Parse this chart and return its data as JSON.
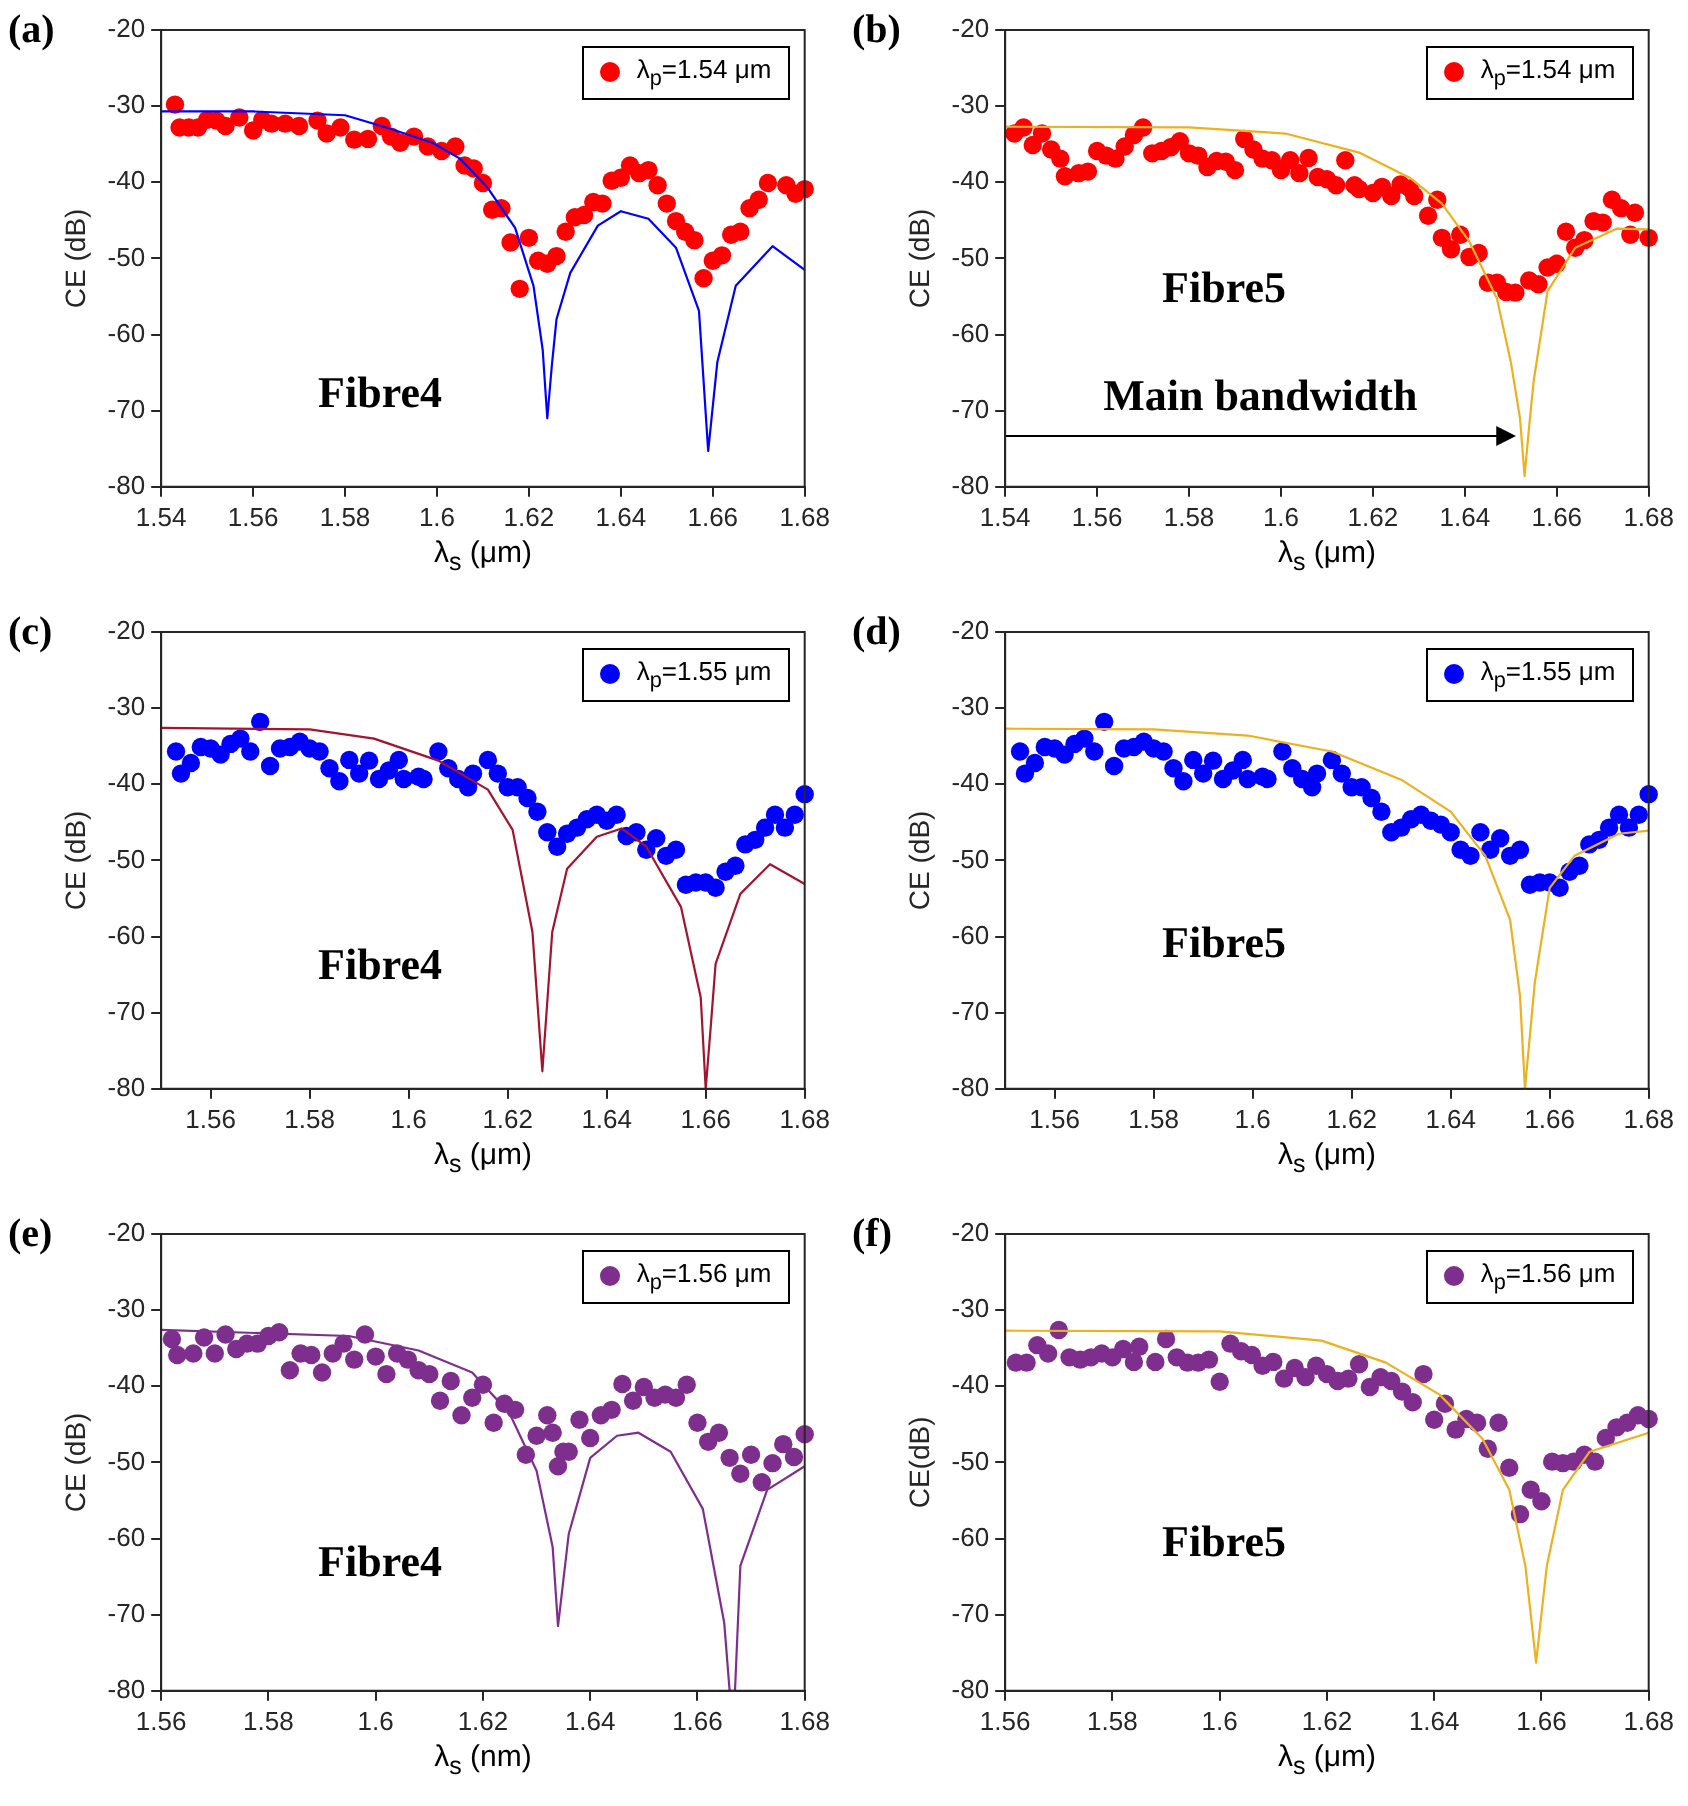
{
  "chart_data": [
    {
      "type": "scatter",
      "title": "(a)",
      "xlabel": "λ$_{s}$ (μm)",
      "ylabel": "CE (dB)",
      "xlim": [
        1.54,
        1.68
      ],
      "ylim": [
        -80,
        -20
      ],
      "xticks": [
        1.54,
        1.56,
        1.58,
        1.6,
        1.62,
        1.64,
        1.66,
        1.68
      ],
      "yticks": [
        -80,
        -70,
        -60,
        -50,
        -40,
        -30,
        -20
      ],
      "grid": false,
      "legend": "top right",
      "marker": "circle",
      "annotations": [
        "Fibre4"
      ],
      "series": [
        {
          "name": "λ$_{p}$=1.54 μm",
          "color": "#ff0000",
          "x": [
            1.543,
            1.544,
            1.546,
            1.548,
            1.55,
            1.552,
            1.554,
            1.557,
            1.56,
            1.562,
            1.564,
            1.567,
            1.57,
            1.574,
            1.576,
            1.579,
            1.582,
            1.585,
            1.588,
            1.59,
            1.592,
            1.595,
            1.598,
            1.601,
            1.604,
            1.606,
            1.608,
            1.61,
            1.612,
            1.614,
            1.616,
            1.618,
            1.62,
            1.622,
            1.624,
            1.626,
            1.628,
            1.63,
            1.632,
            1.634,
            1.636,
            1.638,
            1.64,
            1.642,
            1.644,
            1.646,
            1.648,
            1.65,
            1.652,
            1.654,
            1.656,
            1.658,
            1.66,
            1.662,
            1.664,
            1.666,
            1.668,
            1.67,
            1.672,
            1.676,
            1.678,
            1.68
          ],
          "values": [
            -29.8,
            -32.8,
            -32.8,
            -32.8,
            -31.8,
            -31.9,
            -32.6,
            -31.5,
            -33.2,
            -31.8,
            -32.3,
            -32.3,
            -32.6,
            -31.9,
            -33.6,
            -32.8,
            -34.4,
            -34.3,
            -32.6,
            -34,
            -34.8,
            -34,
            -35.3,
            -35.9,
            -35.3,
            -37.8,
            -38.2,
            -40.1,
            -43.6,
            -43.4,
            -47.9,
            -54,
            -47.3,
            -50.3,
            -50.7,
            -49.7,
            -46.5,
            -44.6,
            -44.3,
            -42.6,
            -42.8,
            -39.8,
            -39.4,
            -37.8,
            -38.8,
            -38.4,
            -40.4,
            -42.8,
            -45.1,
            -46.5,
            -47.6,
            -52.6,
            -50.3,
            -49.6,
            -46.9,
            -46.5,
            -43.4,
            -42.3,
            -40.1,
            -40.4,
            -41.5,
            -40.9
          ]
        },
        {
          "type": "line",
          "marker": "none",
          "color": "#0000ff",
          "x": [
            1.54,
            1.56,
            1.58,
            1.589,
            1.599,
            1.605,
            1.611,
            1.617,
            1.621,
            1.623,
            1.624,
            1.625,
            1.626,
            1.629,
            1.635,
            1.64,
            1.646,
            1.652,
            1.657,
            1.659,
            1.661,
            1.665,
            1.673,
            1.68
          ],
          "values": [
            -30.7,
            -30.7,
            -31.2,
            -32.8,
            -34.8,
            -36.9,
            -40.7,
            -46,
            -53.6,
            -62,
            -71,
            -64,
            -58,
            -51.9,
            -45.7,
            -43.8,
            -44.8,
            -48.6,
            -56.9,
            -75.3,
            -63.6,
            -53.6,
            -48.4,
            -51.5
          ]
        }
      ]
    },
    {
      "type": "scatter",
      "title": "(b)",
      "xlabel": "λ$_{s}$ (μm)",
      "ylabel": "CE (dB)",
      "xlim": [
        1.54,
        1.68
      ],
      "ylim": [
        -80,
        -20
      ],
      "xticks": [
        1.54,
        1.56,
        1.58,
        1.6,
        1.62,
        1.64,
        1.66,
        1.68
      ],
      "yticks": [
        -80,
        -70,
        -60,
        -50,
        -40,
        -30,
        -20
      ],
      "grid": false,
      "legend": "top right",
      "marker": "circle",
      "annotations": [
        "Fibre5",
        {
          "text": "Main bandwidth",
          "x": 1.651,
          "y": -73.4
        }
      ],
      "series": [
        {
          "name": "λ$_{p}$=1.54 μm",
          "color": "#ff0000",
          "x": [
            1.542,
            1.544,
            1.546,
            1.548,
            1.55,
            1.552,
            1.553,
            1.556,
            1.558,
            1.56,
            1.562,
            1.564,
            1.566,
            1.568,
            1.57,
            1.572,
            1.574,
            1.576,
            1.578,
            1.58,
            1.582,
            1.584,
            1.586,
            1.588,
            1.59,
            1.592,
            1.594,
            1.596,
            1.598,
            1.6,
            1.602,
            1.604,
            1.606,
            1.608,
            1.61,
            1.612,
            1.614,
            1.616,
            1.617,
            1.62,
            1.622,
            1.624,
            1.626,
            1.628,
            1.629,
            1.632,
            1.634,
            1.635,
            1.637,
            1.639,
            1.641,
            1.643,
            1.645,
            1.647,
            1.649,
            1.651,
            1.654,
            1.656,
            1.658,
            1.66,
            1.662,
            1.664,
            1.666,
            1.668,
            1.67,
            1.672,
            1.674,
            1.676,
            1.677,
            1.68
          ],
          "values": [
            -33.6,
            -32.8,
            -35.1,
            -33.6,
            -35.7,
            -36.9,
            -39.2,
            -38.8,
            -38.6,
            -35.9,
            -36.5,
            -36.9,
            -35.3,
            -33.8,
            -32.8,
            -36.2,
            -35.9,
            -35.4,
            -34.6,
            -36.2,
            -36.5,
            -38,
            -37.2,
            -37.3,
            -38.4,
            -34.3,
            -35.7,
            -36.9,
            -37.1,
            -38.4,
            -37.1,
            -38.8,
            -36.8,
            -39.3,
            -39.6,
            -40.4,
            -37.1,
            -40.4,
            -40.9,
            -41.4,
            -40.6,
            -41.8,
            -40.3,
            -40.8,
            -41.8,
            -44.4,
            -42.3,
            -47.3,
            -48.8,
            -46.9,
            -49.8,
            -49.3,
            -53.2,
            -53.2,
            -54.4,
            -54.5,
            -52.9,
            -53.4,
            -51.2,
            -50.7,
            -46.5,
            -48.6,
            -47.6,
            -45.1,
            -45.3,
            -42.3,
            -43.4,
            -46.9,
            -44,
            -47.3
          ]
        },
        {
          "type": "line",
          "marker": "none",
          "color": "#edb120",
          "x": [
            1.54,
            1.58,
            1.601,
            1.617,
            1.628,
            1.635,
            1.641,
            1.647,
            1.65,
            1.652,
            1.653,
            1.654,
            1.655,
            1.658,
            1.664,
            1.673,
            1.68
          ],
          "values": [
            -32.7,
            -32.8,
            -33.6,
            -36.1,
            -39.4,
            -42.8,
            -47.8,
            -55.3,
            -63.6,
            -71,
            -78.6,
            -72,
            -66,
            -54.3,
            -48.6,
            -46.1,
            -46.2
          ]
        }
      ]
    },
    {
      "type": "scatter",
      "title": "(c)",
      "xlabel": "λ$_{s}$ (μm)",
      "ylabel": "CE (dB)",
      "xlim": [
        1.55,
        1.68
      ],
      "ylim": [
        -80,
        -20
      ],
      "xticks": [
        1.56,
        1.58,
        1.6,
        1.62,
        1.64,
        1.66,
        1.68
      ],
      "yticks": [
        -80,
        -70,
        -60,
        -50,
        -40,
        -30,
        -20
      ],
      "grid": false,
      "legend": "top right",
      "marker": "circle",
      "annotations": [
        "Fibre4"
      ],
      "series": [
        {
          "name": "λ$_{p}$=1.55 μm",
          "color": "#0000ff",
          "x": [
            1.553,
            1.554,
            1.556,
            1.558,
            1.56,
            1.562,
            1.564,
            1.566,
            1.568,
            1.57,
            1.572,
            1.574,
            1.576,
            1.578,
            1.58,
            1.582,
            1.584,
            1.586,
            1.588,
            1.59,
            1.592,
            1.594,
            1.596,
            1.598,
            1.599,
            1.602,
            1.603,
            1.606,
            1.608,
            1.61,
            1.612,
            1.613,
            1.616,
            1.618,
            1.62,
            1.622,
            1.624,
            1.626,
            1.628,
            1.63,
            1.632,
            1.634,
            1.636,
            1.638,
            1.64,
            1.642,
            1.644,
            1.646,
            1.648,
            1.65,
            1.652,
            1.654,
            1.656,
            1.658,
            1.66,
            1.662,
            1.664,
            1.666,
            1.668,
            1.67,
            1.672,
            1.674,
            1.676,
            1.678,
            1.68
          ],
          "values": [
            -35.7,
            -38.6,
            -37.2,
            -35.1,
            -35.3,
            -36.1,
            -34.7,
            -34,
            -35.7,
            -31.8,
            -37.6,
            -35.3,
            -35.1,
            -34.4,
            -35.3,
            -35.7,
            -37.9,
            -39.6,
            -36.8,
            -38.6,
            -36.9,
            -39.3,
            -38.2,
            -36.8,
            -39.3,
            -39,
            -39.3,
            -35.7,
            -37.9,
            -39.3,
            -40.4,
            -38.6,
            -36.8,
            -38.6,
            -40.4,
            -40.4,
            -41.8,
            -43.6,
            -46.3,
            -48.2,
            -46.5,
            -45.7,
            -44.6,
            -44,
            -44.8,
            -44,
            -46.8,
            -46.3,
            -48.6,
            -47.1,
            -49.4,
            -48.6,
            -53.2,
            -52.9,
            -52.9,
            -53.6,
            -51.5,
            -50.7,
            -47.9,
            -47.3,
            -45.7,
            -44,
            -45.7,
            -44,
            -41.3
          ]
        },
        {
          "type": "line",
          "marker": "none",
          "color": "#a2142f",
          "x": [
            1.55,
            1.58,
            1.593,
            1.606,
            1.616,
            1.621,
            1.625,
            1.627,
            1.629,
            1.632,
            1.638,
            1.643,
            1.648,
            1.655,
            1.659,
            1.66,
            1.661,
            1.662,
            1.667,
            1.673,
            1.68
          ],
          "values": [
            -32.6,
            -32.8,
            -34,
            -36.9,
            -40.7,
            -46,
            -59.4,
            -77.7,
            -59.4,
            -51.1,
            -46.9,
            -45.8,
            -48.2,
            -56.1,
            -68,
            -80,
            -72,
            -63.6,
            -54.4,
            -50.5,
            -53.1
          ]
        }
      ]
    },
    {
      "type": "scatter",
      "title": "(d)",
      "xlabel": "λ$_{s}$ (μm)",
      "ylabel": "CE (dB)",
      "xlim": [
        1.55,
        1.68
      ],
      "ylim": [
        -80,
        -20
      ],
      "xticks": [
        1.56,
        1.58,
        1.6,
        1.62,
        1.64,
        1.66,
        1.68
      ],
      "yticks": [
        -80,
        -70,
        -60,
        -50,
        -40,
        -30,
        -20
      ],
      "grid": false,
      "legend": "top right",
      "marker": "circle",
      "annotations": [
        "Fibre5"
      ],
      "series": [
        {
          "name": "λ$_{p}$=1.55 μm",
          "color": "#0000ff",
          "x": [
            1.553,
            1.554,
            1.556,
            1.558,
            1.56,
            1.562,
            1.564,
            1.566,
            1.568,
            1.57,
            1.572,
            1.574,
            1.576,
            1.578,
            1.58,
            1.582,
            1.584,
            1.586,
            1.588,
            1.59,
            1.592,
            1.594,
            1.596,
            1.598,
            1.599,
            1.602,
            1.603,
            1.606,
            1.608,
            1.61,
            1.612,
            1.613,
            1.616,
            1.618,
            1.62,
            1.622,
            1.624,
            1.626,
            1.628,
            1.63,
            1.632,
            1.634,
            1.636,
            1.638,
            1.64,
            1.642,
            1.644,
            1.646,
            1.648,
            1.65,
            1.652,
            1.654,
            1.656,
            1.658,
            1.66,
            1.662,
            1.664,
            1.666,
            1.668,
            1.67,
            1.672,
            1.674,
            1.676,
            1.678,
            1.68
          ],
          "values": [
            -35.7,
            -38.6,
            -37.2,
            -35.1,
            -35.3,
            -36.1,
            -34.7,
            -34,
            -35.7,
            -31.8,
            -37.6,
            -35.3,
            -35.1,
            -34.4,
            -35.3,
            -35.7,
            -37.9,
            -39.6,
            -36.8,
            -38.6,
            -36.9,
            -39.3,
            -38.2,
            -36.8,
            -39.3,
            -39,
            -39.3,
            -35.7,
            -37.9,
            -39.3,
            -40.4,
            -38.6,
            -36.8,
            -38.6,
            -40.4,
            -40.4,
            -41.8,
            -43.6,
            -46.3,
            -45.7,
            -44.6,
            -44,
            -44.8,
            -45.3,
            -46.3,
            -48.6,
            -49.4,
            -46.3,
            -48.6,
            -47.1,
            -49.4,
            -48.6,
            -53.2,
            -52.9,
            -52.9,
            -53.6,
            -51.5,
            -50.7,
            -47.9,
            -47.3,
            -45.7,
            -44,
            -45.7,
            -44,
            -41.3
          ]
        },
        {
          "type": "line",
          "marker": "none",
          "color": "#edb120",
          "x": [
            1.55,
            1.58,
            1.599,
            1.616,
            1.63,
            1.64,
            1.647,
            1.652,
            1.654,
            1.655,
            1.657,
            1.66,
            1.665,
            1.674,
            1.68
          ],
          "values": [
            -32.7,
            -32.8,
            -33.6,
            -35.7,
            -39.4,
            -43.6,
            -49.4,
            -57.8,
            -67.8,
            -80,
            -66,
            -53.6,
            -49.4,
            -46.5,
            -46.1
          ]
        }
      ]
    },
    {
      "type": "scatter",
      "title": "(e)",
      "xlabel": "λ$_{s}$ (nm)",
      "ylabel": "CE (dB)",
      "xlim": [
        1.56,
        1.68
      ],
      "ylim": [
        -80,
        -20
      ],
      "xticks": [
        1.56,
        1.58,
        1.6,
        1.62,
        1.64,
        1.66,
        1.68
      ],
      "yticks": [
        -80,
        -70,
        -60,
        -50,
        -40,
        -30,
        -20
      ],
      "grid": false,
      "legend": "top right",
      "marker": "circle",
      "annotations": [
        "Fibre4"
      ],
      "series": [
        {
          "name": "λ$_{p}$=1.56 μm",
          "color": "#7e2f8e",
          "x": [
            1.562,
            1.563,
            1.566,
            1.568,
            1.57,
            1.572,
            1.574,
            1.576,
            1.578,
            1.58,
            1.582,
            1.584,
            1.586,
            1.588,
            1.59,
            1.592,
            1.594,
            1.596,
            1.598,
            1.6,
            1.602,
            1.604,
            1.606,
            1.608,
            1.61,
            1.612,
            1.614,
            1.616,
            1.618,
            1.62,
            1.622,
            1.624,
            1.626,
            1.628,
            1.63,
            1.632,
            1.633,
            1.634,
            1.635,
            1.636,
            1.638,
            1.64,
            1.642,
            1.644,
            1.646,
            1.648,
            1.65,
            1.652,
            1.654,
            1.656,
            1.658,
            1.66,
            1.662,
            1.664,
            1.666,
            1.668,
            1.67,
            1.672,
            1.674,
            1.676,
            1.678,
            1.68
          ],
          "values": [
            -33.8,
            -35.9,
            -35.7,
            -33.6,
            -35.7,
            -33.2,
            -35.1,
            -34.4,
            -34.4,
            -33.4,
            -32.9,
            -37.9,
            -35.7,
            -35.9,
            -38.2,
            -35.7,
            -34.4,
            -36.5,
            -33.2,
            -36.1,
            -38.4,
            -35.7,
            -36.5,
            -37.9,
            -38.4,
            -41.9,
            -39.3,
            -43.8,
            -41.5,
            -39.8,
            -44.8,
            -42.3,
            -43.1,
            -49,
            -46.5,
            -43.8,
            -46.1,
            -50.5,
            -48.6,
            -48.6,
            -44.4,
            -46.8,
            -43.8,
            -43.1,
            -39.7,
            -41.9,
            -40.1,
            -41.5,
            -41.1,
            -41.5,
            -39.8,
            -44.8,
            -47.3,
            -46.1,
            -49.4,
            -51.5,
            -49,
            -52.6,
            -50.1,
            -47.6,
            -49.3,
            -46.3
          ]
        },
        {
          "type": "line",
          "marker": "none",
          "color": "#7e2f8e",
          "x": [
            1.56,
            1.595,
            1.608,
            1.618,
            1.625,
            1.63,
            1.633,
            1.634,
            1.636,
            1.64,
            1.645,
            1.649,
            1.655,
            1.661,
            1.665,
            1.666,
            1.667,
            1.668,
            1.673,
            1.68
          ],
          "values": [
            -32.6,
            -33.4,
            -35.3,
            -38.2,
            -43.6,
            -51.1,
            -61.1,
            -71.5,
            -59.4,
            -49.4,
            -46.5,
            -46.1,
            -48.6,
            -56.1,
            -71.1,
            -80,
            -80,
            -63.6,
            -53.6,
            -50.5
          ]
        }
      ]
    },
    {
      "type": "scatter",
      "title": "(f)",
      "xlabel": "λ$_{s}$ (μm)",
      "ylabel": "CE(dB)",
      "xlim": [
        1.56,
        1.68
      ],
      "ylim": [
        -80,
        -20
      ],
      "xticks": [
        1.56,
        1.58,
        1.6,
        1.62,
        1.64,
        1.66,
        1.68
      ],
      "yticks": [
        -80,
        -70,
        -60,
        -50,
        -40,
        -30,
        -20
      ],
      "grid": false,
      "legend": "top right",
      "marker": "circle",
      "annotations": [
        "Fibre5"
      ],
      "series": [
        {
          "name": "λ$_{p}$=1.56 μm",
          "color": "#7e2f8e",
          "x": [
            1.562,
            1.564,
            1.566,
            1.568,
            1.57,
            1.572,
            1.574,
            1.576,
            1.578,
            1.58,
            1.582,
            1.584,
            1.585,
            1.588,
            1.59,
            1.592,
            1.594,
            1.596,
            1.598,
            1.6,
            1.602,
            1.604,
            1.606,
            1.608,
            1.61,
            1.612,
            1.614,
            1.616,
            1.618,
            1.62,
            1.622,
            1.624,
            1.626,
            1.628,
            1.63,
            1.632,
            1.634,
            1.636,
            1.638,
            1.64,
            1.642,
            1.644,
            1.646,
            1.648,
            1.65,
            1.652,
            1.654,
            1.656,
            1.658,
            1.66,
            1.662,
            1.664,
            1.666,
            1.668,
            1.67,
            1.672,
            1.674,
            1.676,
            1.678,
            1.68
          ],
          "values": [
            -36.9,
            -36.9,
            -34.6,
            -35.7,
            -32.6,
            -36.2,
            -36.5,
            -36.2,
            -35.7,
            -36.2,
            -35.1,
            -36.8,
            -34.8,
            -36.8,
            -33.8,
            -36.2,
            -36.9,
            -36.9,
            -36.5,
            -39.4,
            -34.4,
            -35.4,
            -35.9,
            -37.3,
            -36.8,
            -39,
            -37.6,
            -38.8,
            -37.3,
            -38.4,
            -39.3,
            -39,
            -37.1,
            -40.1,
            -38.8,
            -39.3,
            -40.7,
            -42.1,
            -38.4,
            -44.4,
            -42.3,
            -45.7,
            -44.3,
            -44.8,
            -48.2,
            -44.8,
            -50.7,
            -56.8,
            -53.6,
            -55.1,
            -49.9,
            -50.1,
            -49.9,
            -49,
            -49.9,
            -46.8,
            -45.4,
            -44.8,
            -43.8,
            -44.3
          ]
        },
        {
          "type": "line",
          "marker": "none",
          "color": "#edb120",
          "x": [
            1.56,
            1.6,
            1.619,
            1.631,
            1.641,
            1.649,
            1.654,
            1.657,
            1.659,
            1.661,
            1.664,
            1.669,
            1.68
          ],
          "values": [
            -32.7,
            -32.8,
            -34,
            -36.9,
            -41.1,
            -46.9,
            -53.6,
            -63.6,
            -76.3,
            -63.6,
            -53.6,
            -48.6,
            -46.1
          ]
        }
      ]
    }
  ]
}
